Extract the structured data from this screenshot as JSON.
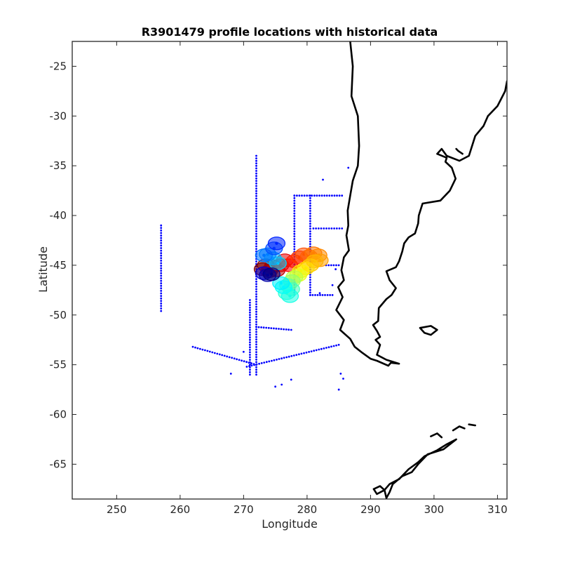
{
  "chart_data": {
    "type": "scatter",
    "title": "R3901479 profile locations with historical data",
    "xlabel": "Longitude",
    "ylabel": "Latitude",
    "xlim": [
      243,
      311.5
    ],
    "ylim": [
      -68.5,
      -22.5
    ],
    "xticks": [
      250,
      260,
      270,
      280,
      290,
      300,
      310
    ],
    "yticks": [
      -25,
      -30,
      -35,
      -40,
      -45,
      -50,
      -55,
      -60,
      -65
    ],
    "grid": false,
    "legend": "none",
    "colors": {
      "historical": "#0000ff",
      "coastline": "#000000",
      "profile_colormap": [
        "#7f0000",
        "#ff0000",
        "#ff7f00",
        "#ffff00",
        "#7fff7f",
        "#00ffff",
        "#007fff",
        "#0000ff"
      ]
    },
    "historical_tracks": [
      [
        [
          257,
          -41
        ],
        [
          257,
          -49.6
        ]
      ],
      [
        [
          272,
          -34
        ],
        [
          272,
          -56
        ]
      ],
      [
        [
          278,
          -38
        ],
        [
          278,
          -48
        ]
      ],
      [
        [
          278,
          -38
        ],
        [
          285.5,
          -38
        ]
      ],
      [
        [
          280.5,
          -38
        ],
        [
          280.5,
          -48
        ]
      ],
      [
        [
          281,
          -41.3
        ],
        [
          285.5,
          -41.3
        ]
      ],
      [
        [
          280.5,
          -48
        ],
        [
          284,
          -48
        ]
      ],
      [
        [
          271,
          -48.5
        ],
        [
          271,
          -56
        ]
      ],
      [
        [
          262,
          -53.2
        ],
        [
          272,
          -55
        ]
      ],
      [
        [
          270.5,
          -55.2
        ],
        [
          285,
          -53
        ]
      ],
      [
        [
          272,
          -51.2
        ],
        [
          277.5,
          -51.5
        ]
      ],
      [
        [
          283,
          -45
        ],
        [
          285,
          -45
        ]
      ]
    ],
    "historical_points": [
      [
        282.5,
        -36.4
      ],
      [
        286.5,
        -35.2
      ],
      [
        284.5,
        -45.4
      ],
      [
        285,
        -57.5
      ],
      [
        276,
        -57
      ],
      [
        277.5,
        -56.5
      ],
      [
        275,
        -57.2
      ],
      [
        268,
        -55.9
      ],
      [
        270,
        -53.7
      ],
      [
        285.3,
        -55.9
      ],
      [
        285.7,
        -56.4
      ],
      [
        284,
        -47
      ],
      [
        282,
        -47.8
      ]
    ],
    "profile_points": [
      {
        "lon": 273.0,
        "lat": -45.4,
        "c": 0.0
      },
      {
        "lon": 273.5,
        "lat": -45.0,
        "c": 0.0
      },
      {
        "lon": 274.0,
        "lat": -45.6,
        "c": 0.04
      },
      {
        "lon": 274.6,
        "lat": -45.1,
        "c": 0.04
      },
      {
        "lon": 275.2,
        "lat": -45.5,
        "c": 0.06
      },
      {
        "lon": 275.8,
        "lat": -45.0,
        "c": 0.08
      },
      {
        "lon": 276.5,
        "lat": -44.5,
        "c": 0.1
      },
      {
        "lon": 277.2,
        "lat": -45.0,
        "c": 0.12
      },
      {
        "lon": 278.0,
        "lat": -44.6,
        "c": 0.15
      },
      {
        "lon": 278.8,
        "lat": -44.2,
        "c": 0.18
      },
      {
        "lon": 279.5,
        "lat": -43.9,
        "c": 0.2
      },
      {
        "lon": 280.3,
        "lat": -44.1,
        "c": 0.22
      },
      {
        "lon": 281.0,
        "lat": -43.8,
        "c": 0.24
      },
      {
        "lon": 281.8,
        "lat": -44.0,
        "c": 0.26
      },
      {
        "lon": 282.0,
        "lat": -44.5,
        "c": 0.28
      },
      {
        "lon": 281.2,
        "lat": -44.6,
        "c": 0.3
      },
      {
        "lon": 280.5,
        "lat": -45.0,
        "c": 0.32
      },
      {
        "lon": 279.8,
        "lat": -45.3,
        "c": 0.34
      },
      {
        "lon": 279.0,
        "lat": -45.6,
        "c": 0.36
      },
      {
        "lon": 278.6,
        "lat": -46.0,
        "c": 0.4
      },
      {
        "lon": 278.0,
        "lat": -46.2,
        "c": 0.44
      },
      {
        "lon": 277.6,
        "lat": -46.6,
        "c": 0.48
      },
      {
        "lon": 277.0,
        "lat": -47.0,
        "c": 0.52
      },
      {
        "lon": 277.5,
        "lat": -47.4,
        "c": 0.56
      },
      {
        "lon": 276.8,
        "lat": -47.8,
        "c": 0.58
      },
      {
        "lon": 277.3,
        "lat": -48.1,
        "c": 0.6
      },
      {
        "lon": 276.3,
        "lat": -47.2,
        "c": 0.62
      },
      {
        "lon": 275.9,
        "lat": -46.8,
        "c": 0.64
      },
      {
        "lon": 275.4,
        "lat": -44.8,
        "c": 0.66
      },
      {
        "lon": 274.6,
        "lat": -44.3,
        "c": 0.7
      },
      {
        "lon": 273.8,
        "lat": -43.9,
        "c": 0.74
      },
      {
        "lon": 273.2,
        "lat": -44.0,
        "c": 0.76
      },
      {
        "lon": 274.8,
        "lat": -43.3,
        "c": 0.8
      },
      {
        "lon": 275.2,
        "lat": -42.8,
        "c": 0.84
      },
      {
        "lon": 273.2,
        "lat": -45.8,
        "c": 0.92
      },
      {
        "lon": 273.8,
        "lat": -46.0,
        "c": 0.96
      },
      {
        "lon": 274.4,
        "lat": -45.9,
        "c": 1.0
      }
    ],
    "coastlines": [
      [
        [
          286.8,
          -22.5
        ],
        [
          287.2,
          -25
        ],
        [
          287.0,
          -28
        ],
        [
          288.0,
          -30
        ],
        [
          288.2,
          -33
        ],
        [
          288.0,
          -35
        ],
        [
          287.2,
          -36.5
        ],
        [
          286.8,
          -38
        ],
        [
          286.4,
          -39.5
        ],
        [
          286.5,
          -41
        ],
        [
          286.2,
          -42
        ],
        [
          286.6,
          -43.5
        ],
        [
          285.8,
          -44.2
        ],
        [
          285.4,
          -45.5
        ],
        [
          285.8,
          -46.5
        ],
        [
          284.9,
          -47.2
        ],
        [
          285.6,
          -48.2
        ],
        [
          284.6,
          -49.5
        ],
        [
          285.8,
          -50.5
        ],
        [
          285.2,
          -51.5
        ],
        [
          286.8,
          -52.4
        ],
        [
          287.5,
          -53.2
        ],
        [
          288.7,
          -53.8
        ],
        [
          290.0,
          -54.4
        ],
        [
          291.0,
          -54.6
        ],
        [
          292.8,
          -55.1
        ],
        [
          293.2,
          -54.8
        ],
        [
          294.5,
          -54.9
        ],
        [
          292.5,
          -54.5
        ],
        [
          291.0,
          -54.0
        ],
        [
          291.5,
          -53.0
        ],
        [
          290.8,
          -52.5
        ],
        [
          291.5,
          -52.2
        ],
        [
          291.0,
          -51.6
        ],
        [
          290.4,
          -51.0
        ],
        [
          291.2,
          -50.6
        ],
        [
          291.3,
          -49.3
        ],
        [
          292.5,
          -48.4
        ],
        [
          293.3,
          -48.0
        ],
        [
          294.0,
          -47.3
        ],
        [
          293.0,
          -46.5
        ],
        [
          292.5,
          -45.6
        ],
        [
          294.0,
          -45.2
        ],
        [
          294.5,
          -44.6
        ],
        [
          295.0,
          -43.6
        ],
        [
          295.3,
          -42.8
        ],
        [
          296.0,
          -42.2
        ],
        [
          297.0,
          -41.8
        ],
        [
          297.5,
          -40.8
        ],
        [
          297.6,
          -40.0
        ],
        [
          298.2,
          -38.8
        ],
        [
          301.0,
          -38.5
        ],
        [
          302.5,
          -37.5
        ],
        [
          303.4,
          -36.3
        ],
        [
          302.8,
          -35.2
        ],
        [
          301.8,
          -34.6
        ],
        [
          302.0,
          -34.2
        ],
        [
          300.5,
          -33.8
        ],
        [
          301.2,
          -33.3
        ],
        [
          302.0,
          -34.0
        ],
        [
          304.0,
          -34.5
        ],
        [
          305.5,
          -34.0
        ],
        [
          306.5,
          -32.0
        ],
        [
          307.8,
          -31.0
        ],
        [
          308.5,
          -30.0
        ],
        [
          310.0,
          -29.0
        ],
        [
          311.2,
          -27.5
        ],
        [
          311.5,
          -26.5
        ]
      ],
      [
        [
          303.5,
          -33.3
        ],
        [
          303.8,
          -33.5
        ],
        [
          304.5,
          -33.8
        ]
      ],
      [
        [
          297.8,
          -51.3
        ],
        [
          299.5,
          -51.1
        ],
        [
          300.5,
          -51.5
        ],
        [
          299.5,
          -52.0
        ],
        [
          298.5,
          -51.8
        ],
        [
          297.8,
          -51.3
        ]
      ],
      [
        [
          292.5,
          -68.4
        ],
        [
          292.2,
          -67.6
        ],
        [
          293.0,
          -67.0
        ],
        [
          294.5,
          -66.5
        ],
        [
          296.0,
          -65.5
        ],
        [
          297.5,
          -64.8
        ],
        [
          298.5,
          -64.2
        ],
        [
          300.5,
          -63.6
        ],
        [
          302.0,
          -63.0
        ],
        [
          303.5,
          -62.5
        ],
        [
          301.5,
          -63.5
        ],
        [
          299.0,
          -64.0
        ],
        [
          297.5,
          -65.0
        ],
        [
          296.5,
          -65.8
        ],
        [
          295.0,
          -66.2
        ],
        [
          293.5,
          -67.0
        ],
        [
          293.0,
          -67.8
        ],
        [
          292.5,
          -68.4
        ]
      ],
      [
        [
          290.5,
          -67.5
        ],
        [
          291.5,
          -67.2
        ],
        [
          292.2,
          -67.6
        ],
        [
          291.0,
          -68.0
        ],
        [
          290.5,
          -67.5
        ]
      ],
      [
        [
          299.5,
          -62.2
        ],
        [
          300.5,
          -61.9
        ],
        [
          301.2,
          -62.3
        ]
      ],
      [
        [
          303.0,
          -61.6
        ],
        [
          304.0,
          -61.2
        ],
        [
          304.8,
          -61.4
        ]
      ],
      [
        [
          305.5,
          -61.0
        ],
        [
          306.5,
          -61.1
        ]
      ]
    ]
  }
}
